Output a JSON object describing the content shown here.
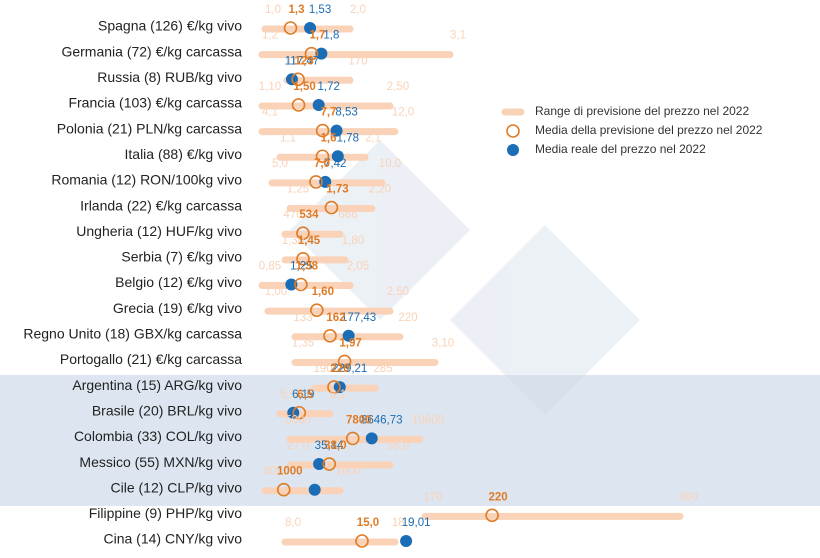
{
  "chart_data": {
    "type": "range-dot",
    "categories": [
      "Spagna (126) €/kg vivo",
      "Germania (72) €/kg carcassa",
      "Russia (8) RUB/kg vivo",
      "Francia (103) €/kg carcassa",
      "Polonia (21) PLN/kg carcassa",
      "Italia (88) €/kg vivo",
      "Romania (12) RON/100kg vivo",
      "Irlanda (22) €/kg carcassa",
      "Ungheria (12) HUF/kg vivo",
      "Serbia (7) €/kg vivo",
      "Belgio (12) €/kg vivo",
      "Grecia (19) €/kg vivo",
      "Regno Unito (18) GBX/kg carcassa",
      "Portogallo (21) €/kg carcassa",
      "Argentina (15) ARG/kg vivo",
      "Brasile (20) BRL/kg vivo",
      "Colombia (33) COL/kg vivo",
      "Messico (55) MXN/kg vivo",
      "Cile (12) CLP/kg vivo",
      "Filippine (9) PHP/kg vivo",
      "Cina (14) CNY/kg vivo"
    ],
    "series": [
      {
        "name": "Range di previsione del prezzo nel 2022",
        "color": "#f9d2b8",
        "low": [
          1.0,
          1.2,
          113,
          1.1,
          4.1,
          1.1,
          5.0,
          1.25,
          470,
          1.3,
          0.85,
          1.0,
          133,
          1.35,
          190,
          5.5,
          5000,
          27.0,
          800,
          170,
          8.0
        ],
        "low_labels": [
          "1,0",
          "1,2",
          "113",
          "1,10",
          "4,1",
          "1,1",
          "5,0",
          "1,25",
          "470",
          "1,30",
          "0,85",
          "1,00",
          "133",
          "1,35",
          "190",
          "5,5",
          "5000",
          "27,0",
          "800",
          "170",
          "8,0"
        ],
        "high": [
          2.0,
          3.1,
          170,
          2.5,
          12.0,
          2.1,
          10.0,
          2.2,
          666,
          1.8,
          2.05,
          2.5,
          220,
          3.1,
          285,
          8.1,
          10800,
          55.0,
          1600,
          360,
          18.0
        ],
        "high_labels": [
          "2,0",
          "3,1",
          "170",
          "2,50",
          "12,0",
          "2,1",
          "10,0",
          "2,20",
          "666",
          "1,80",
          "2,05",
          "2,50",
          "220",
          "3,10",
          "285",
          "8,1",
          "10800",
          "55,0",
          "1600",
          "360",
          "18,0"
        ]
      },
      {
        "name": "Media della previsione del prezzo nel 2022",
        "color": "#e07b26",
        "values": [
          1.3,
          1.7,
          123,
          1.5,
          7.7,
          1.6,
          7.0,
          1.73,
          534,
          1.45,
          1.38,
          1.6,
          162,
          1.97,
          220,
          6.5,
          7800,
          38.0,
          1000,
          220,
          15.0
        ],
        "value_labels": [
          "1,3",
          "1,7",
          "123",
          "1,50",
          "7,7",
          "1,6",
          "7,0",
          "1,73",
          "534",
          "1,45",
          "1,38",
          "1,60",
          "162",
          "1,97",
          "220",
          "6,5",
          "7800",
          "38,0",
          "1000",
          "220",
          "15,0"
        ]
      },
      {
        "name": "Media reale del prezzo nel 2022",
        "color": "#1b6db5",
        "values": [
          1.53,
          1.8,
          117.47,
          1.72,
          8.53,
          1.78,
          7.42,
          null,
          null,
          null,
          1.25,
          null,
          177.43,
          null,
          229.21,
          6.19,
          8646.73,
          35.14,
          1330,
          null,
          19.01
        ],
        "value_labels": [
          "1,53",
          "1,8",
          "117,47",
          "1,72",
          "8,53",
          "1,78",
          "7,42",
          null,
          null,
          null,
          "1,25",
          null,
          "177,43",
          null,
          "229,21",
          "6,19",
          "8646,73",
          "35,14",
          null,
          null,
          "19,01"
        ]
      }
    ]
  }
}
